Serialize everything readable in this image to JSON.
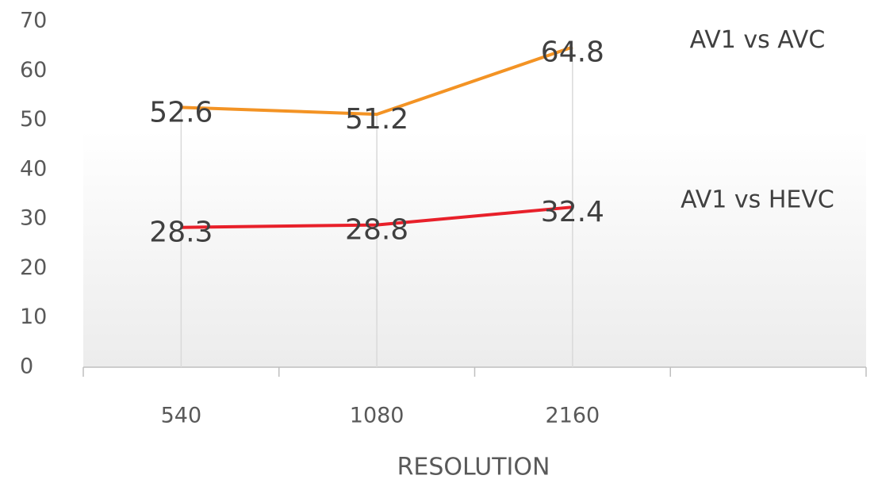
{
  "chart_data": {
    "type": "line",
    "xlabel": "RESOLUTION",
    "categories": [
      "540",
      "1080",
      "2160",
      null
    ],
    "series": [
      {
        "name": "AV1 vs AVC",
        "color": "#f39324",
        "values": [
          52.6,
          51.2,
          64.8,
          null
        ]
      },
      {
        "name": "AV1 vs HEVC",
        "color": "#e8202a",
        "values": [
          28.3,
          28.8,
          32.4,
          null
        ]
      }
    ],
    "ylim": [
      0,
      70
    ],
    "yticks": [
      0,
      10,
      20,
      30,
      40,
      50,
      60,
      70
    ]
  }
}
